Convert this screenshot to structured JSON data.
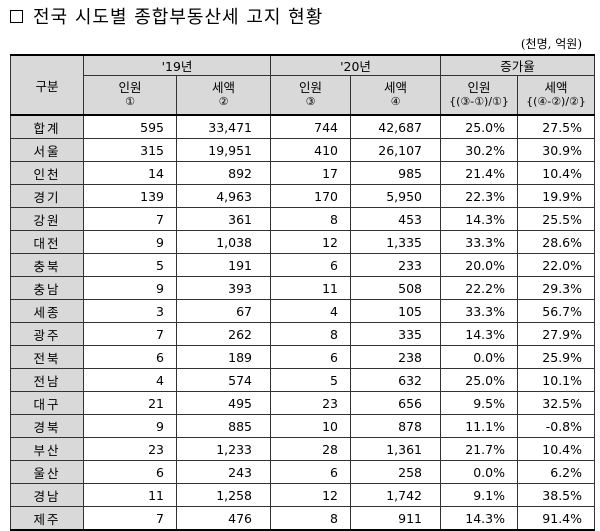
{
  "title": "전국 시도별 종합부동산세 고지 현황",
  "unit": "(천명, 억원)",
  "header": {
    "category": "구분",
    "year19": "'19년",
    "year20": "'20년",
    "growth": "증가율",
    "people": "인원",
    "tax": "세액",
    "c1": "①",
    "c2": "②",
    "c3": "③",
    "c4": "④",
    "c5": "{(③-①)/①}",
    "c6": "{(④-②)/②}"
  },
  "rows": [
    {
      "region": "합계",
      "p19": "595",
      "t19": "33,471",
      "p20": "744",
      "t20": "42,687",
      "gp": "25.0%",
      "gt": "27.5%"
    },
    {
      "region": "서울",
      "p19": "315",
      "t19": "19,951",
      "p20": "410",
      "t20": "26,107",
      "gp": "30.2%",
      "gt": "30.9%"
    },
    {
      "region": "인천",
      "p19": "14",
      "t19": "892",
      "p20": "17",
      "t20": "985",
      "gp": "21.4%",
      "gt": "10.4%"
    },
    {
      "region": "경기",
      "p19": "139",
      "t19": "4,963",
      "p20": "170",
      "t20": "5,950",
      "gp": "22.3%",
      "gt": "19.9%"
    },
    {
      "region": "강원",
      "p19": "7",
      "t19": "361",
      "p20": "8",
      "t20": "453",
      "gp": "14.3%",
      "gt": "25.5%"
    },
    {
      "region": "대전",
      "p19": "9",
      "t19": "1,038",
      "p20": "12",
      "t20": "1,335",
      "gp": "33.3%",
      "gt": "28.6%"
    },
    {
      "region": "충북",
      "p19": "5",
      "t19": "191",
      "p20": "6",
      "t20": "233",
      "gp": "20.0%",
      "gt": "22.0%"
    },
    {
      "region": "충남",
      "p19": "9",
      "t19": "393",
      "p20": "11",
      "t20": "508",
      "gp": "22.2%",
      "gt": "29.3%"
    },
    {
      "region": "세종",
      "p19": "3",
      "t19": "67",
      "p20": "4",
      "t20": "105",
      "gp": "33.3%",
      "gt": "56.7%"
    },
    {
      "region": "광주",
      "p19": "7",
      "t19": "262",
      "p20": "8",
      "t20": "335",
      "gp": "14.3%",
      "gt": "27.9%"
    },
    {
      "region": "전북",
      "p19": "6",
      "t19": "189",
      "p20": "6",
      "t20": "238",
      "gp": "0.0%",
      "gt": "25.9%"
    },
    {
      "region": "전남",
      "p19": "4",
      "t19": "574",
      "p20": "5",
      "t20": "632",
      "gp": "25.0%",
      "gt": "10.1%"
    },
    {
      "region": "대구",
      "p19": "21",
      "t19": "495",
      "p20": "23",
      "t20": "656",
      "gp": "9.5%",
      "gt": "32.5%"
    },
    {
      "region": "경북",
      "p19": "9",
      "t19": "885",
      "p20": "10",
      "t20": "878",
      "gp": "11.1%",
      "gt": "-0.8%"
    },
    {
      "region": "부산",
      "p19": "23",
      "t19": "1,233",
      "p20": "28",
      "t20": "1,361",
      "gp": "21.7%",
      "gt": "10.4%"
    },
    {
      "region": "울산",
      "p19": "6",
      "t19": "243",
      "p20": "6",
      "t20": "258",
      "gp": "0.0%",
      "gt": "6.2%"
    },
    {
      "region": "경남",
      "p19": "11",
      "t19": "1,258",
      "p20": "12",
      "t20": "1,742",
      "gp": "9.1%",
      "gt": "38.5%"
    },
    {
      "region": "제주",
      "p19": "7",
      "t19": "476",
      "p20": "8",
      "t20": "911",
      "gp": "14.3%",
      "gt": "91.4%"
    }
  ]
}
